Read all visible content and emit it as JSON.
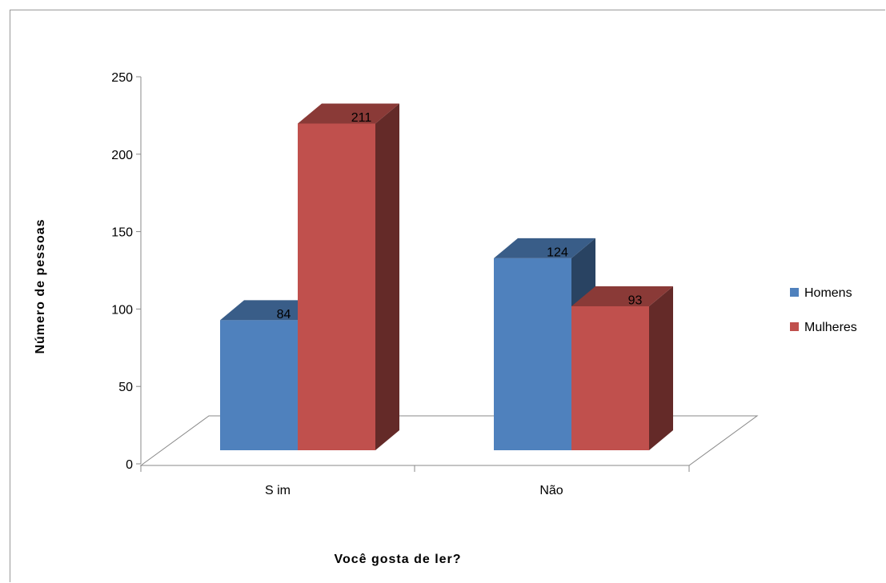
{
  "chart_data": {
    "type": "bar",
    "categories": [
      "S im",
      "Não"
    ],
    "series": [
      {
        "name": "Homens",
        "values": [
          84,
          124
        ],
        "color": "#4F81BD"
      },
      {
        "name": "Mulheres",
        "values": [
          211,
          93
        ],
        "color": "#C0504D"
      }
    ],
    "xlabel": "Você gosta de ler?",
    "ylabel": "Número de pessoas",
    "ylim": [
      0,
      250
    ],
    "yticks": [
      "0",
      "50",
      "100",
      "150",
      "200",
      "250"
    ],
    "legend_position": "right",
    "grid": false,
    "style": "3d-clustered-column"
  }
}
